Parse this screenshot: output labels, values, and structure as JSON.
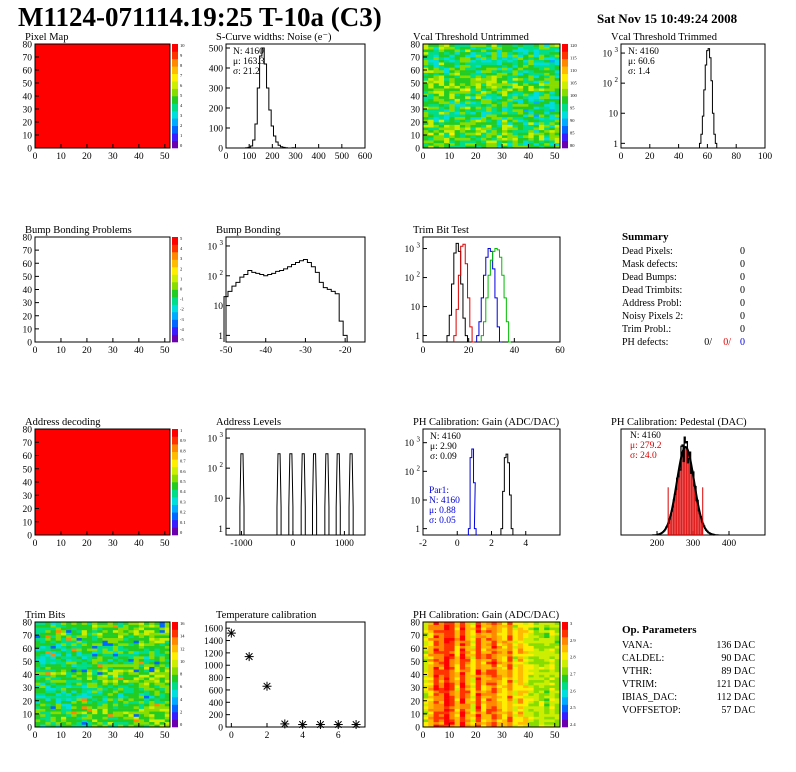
{
  "header": {
    "title": "M1124-071114.19:25 T-10a (C3)",
    "date": "Sat Nov 15 10:49:24 2008"
  },
  "colors": {
    "palette": [
      "#6b00b0",
      "#3a1cff",
      "#0066ff",
      "#00aaff",
      "#00dddd",
      "#00dd88",
      "#22cc22",
      "#88dd00",
      "#ccee00",
      "#ffee00",
      "#ffbb00",
      "#ff8800",
      "#ff3300",
      "#ff0000"
    ],
    "black": "#000000",
    "red": "#dd0000",
    "blue": "#0000dd",
    "green": "#00bb00"
  },
  "summary": {
    "title": "Summary",
    "rows": [
      {
        "label": "Dead Pixels:",
        "value": "0"
      },
      {
        "label": "Mask defects:",
        "value": "0"
      },
      {
        "label": "Dead Bumps:",
        "value": "0"
      },
      {
        "label": "Dead Trimbits:",
        "value": "0"
      },
      {
        "label": "Address Probl:",
        "value": "0"
      },
      {
        "label": "Noisy Pixels 2:",
        "value": "0"
      },
      {
        "label": "Trim Probl.:",
        "value": "0"
      }
    ],
    "ph_label": "PH defects:",
    "ph_values": [
      "0/",
      "0/",
      "0"
    ]
  },
  "parameters": {
    "title": "Op. Parameters",
    "rows": [
      {
        "name": "VANA:",
        "value": "136 DAC"
      },
      {
        "name": "CALDEL:",
        "value": "90 DAC"
      },
      {
        "name": "VTHR:",
        "value": "89 DAC"
      },
      {
        "name": "VTRIM:",
        "value": "121 DAC"
      },
      {
        "name": "IBIAS_DAC:",
        "value": "112 DAC"
      },
      {
        "name": "VOFFSETOP:",
        "value": "57 DAC"
      }
    ]
  },
  "chart_data": [
    {
      "id": "pixel-map",
      "type": "heatmap",
      "title": "Pixel Map",
      "pattern": "uniform-max",
      "xlim": [
        0,
        52
      ],
      "ylim": [
        0,
        80
      ],
      "xticks": [
        0,
        10,
        20,
        30,
        40,
        50
      ],
      "yticks": [
        0,
        10,
        20,
        30,
        40,
        50,
        60,
        70,
        80
      ],
      "zlabels": [
        "10",
        "9",
        "8",
        "7",
        "6",
        "5",
        "4",
        "3",
        "2",
        "1",
        "0"
      ]
    },
    {
      "id": "scurve",
      "type": "histogram",
      "title": "S-Curve widths: Noise (e⁻)",
      "xlim": [
        0,
        600
      ],
      "ylim": [
        0,
        520
      ],
      "xticks": [
        0,
        100,
        200,
        300,
        400,
        500,
        600
      ],
      "yticks": [
        0,
        100,
        200,
        300,
        400,
        500
      ],
      "stats": [
        "N: 4160",
        "μ: 163.3",
        "σ: 21.2"
      ],
      "series": [
        {
          "color": "black",
          "x": [
            80,
            90,
            100,
            110,
            120,
            130,
            140,
            150,
            160,
            170,
            180,
            190,
            200,
            210,
            220,
            230,
            240,
            250,
            260,
            270,
            280,
            290,
            300
          ],
          "y": [
            0,
            1,
            3,
            10,
            40,
            120,
            300,
            460,
            500,
            420,
            300,
            190,
            110,
            60,
            30,
            14,
            6,
            3,
            1,
            0,
            0,
            1,
            0
          ]
        }
      ]
    },
    {
      "id": "vcal-untrimmed",
      "type": "heatmap",
      "title": "Vcal Threshold Untrimmed",
      "pattern": "noise-broad",
      "xlim": [
        0,
        52
      ],
      "ylim": [
        0,
        80
      ],
      "xticks": [
        0,
        10,
        20,
        30,
        40,
        50
      ],
      "yticks": [
        0,
        10,
        20,
        30,
        40,
        50,
        60,
        70,
        80
      ],
      "zlabels": [
        "120",
        "115",
        "110",
        "105",
        "100",
        "95",
        "90",
        "85",
        "80"
      ]
    },
    {
      "id": "vcal-trimmed",
      "type": "histogram",
      "title": "Vcal Threshold Trimmed",
      "log": true,
      "xlim": [
        0,
        100
      ],
      "ylim": [
        0.7,
        2000
      ],
      "xticks": [
        0,
        20,
        40,
        60,
        80,
        100
      ],
      "yticks": [
        1,
        10,
        100,
        1000
      ],
      "stats": [
        "N: 4160",
        "μ: 60.6",
        "σ: 1.4"
      ],
      "series": [
        {
          "color": "black",
          "x": [
            55,
            56,
            57,
            58,
            59,
            60,
            61,
            62,
            63,
            64,
            65,
            66
          ],
          "y": [
            1,
            2,
            8,
            60,
            400,
            1200,
            1400,
            700,
            120,
            10,
            2,
            1
          ]
        }
      ]
    },
    {
      "id": "bump-problems",
      "type": "heatmap",
      "title": "Bump Bonding Problems",
      "pattern": "empty",
      "xlim": [
        0,
        52
      ],
      "ylim": [
        0,
        80
      ],
      "xticks": [
        0,
        10,
        20,
        30,
        40,
        50
      ],
      "yticks": [
        0,
        10,
        20,
        30,
        40,
        50,
        60,
        70,
        80
      ],
      "zlabels": [
        "5",
        "4",
        "3",
        "2",
        "1",
        "0",
        "-1",
        "-2",
        "-3",
        "-4",
        "-5"
      ]
    },
    {
      "id": "bump-bonding",
      "type": "histogram",
      "title": "Bump Bonding",
      "log": true,
      "xlim": [
        -50,
        -15
      ],
      "ylim": [
        0.6,
        2000
      ],
      "xticks": [
        -50,
        -40,
        -30,
        -20
      ],
      "yticks": [
        1,
        10,
        100,
        1000
      ],
      "series": [
        {
          "color": "black",
          "x": [
            -50,
            -49,
            -48,
            -47,
            -46,
            -45,
            -44,
            -43,
            -42,
            -41,
            -40,
            -39,
            -38,
            -37,
            -36,
            -35,
            -34,
            -33,
            -32,
            -31,
            -30,
            -29,
            -28,
            -27,
            -26,
            -25,
            -24,
            -23,
            -22,
            -21,
            -20,
            -19
          ],
          "y": [
            20,
            30,
            45,
            60,
            90,
            110,
            150,
            130,
            120,
            110,
            100,
            110,
            120,
            140,
            150,
            170,
            200,
            240,
            280,
            320,
            350,
            280,
            200,
            130,
            60,
            40,
            35,
            30,
            25,
            3,
            1,
            0
          ]
        }
      ]
    },
    {
      "id": "trim-bit-test",
      "type": "histogram",
      "title": "Trim Bit Test",
      "log": true,
      "xlim": [
        0,
        60
      ],
      "ylim": [
        0.6,
        2500
      ],
      "xticks": [
        0,
        20,
        40,
        60
      ],
      "yticks": [
        1,
        10,
        100,
        1000
      ],
      "series": [
        {
          "color": "black",
          "x": [
            11,
            12,
            13,
            14,
            15,
            16,
            17,
            18,
            19,
            20
          ],
          "y": [
            1,
            5,
            60,
            700,
            1500,
            800,
            60,
            4,
            1,
            0
          ]
        },
        {
          "color": "red",
          "x": [
            14,
            15,
            16,
            17,
            18,
            19,
            20,
            21,
            22
          ],
          "y": [
            1,
            8,
            120,
            1200,
            1400,
            300,
            20,
            2,
            0
          ]
        },
        {
          "color": "blue",
          "x": [
            24,
            25,
            26,
            27,
            28,
            29,
            30,
            31,
            32,
            33,
            34
          ],
          "y": [
            1,
            3,
            20,
            120,
            500,
            1000,
            800,
            200,
            20,
            2,
            0
          ]
        },
        {
          "color": "green",
          "x": [
            26,
            27,
            28,
            29,
            30,
            31,
            32,
            33,
            34,
            35,
            36,
            37,
            38
          ],
          "y": [
            1,
            3,
            20,
            120,
            400,
            800,
            1000,
            900,
            500,
            120,
            20,
            3,
            0
          ]
        }
      ]
    },
    {
      "id": "address-decoding",
      "type": "heatmap",
      "title": "Address decoding",
      "pattern": "uniform-max",
      "xlim": [
        0,
        52
      ],
      "ylim": [
        0,
        80
      ],
      "xticks": [
        0,
        10,
        20,
        30,
        40,
        50
      ],
      "yticks": [
        0,
        10,
        20,
        30,
        40,
        50,
        60,
        70,
        80
      ],
      "zlabels": [
        "1",
        "0.9",
        "0.8",
        "0.7",
        "0.6",
        "0.5",
        "0.4",
        "0.3",
        "0.2",
        "0.1",
        "0"
      ]
    },
    {
      "id": "address-levels",
      "type": "histogram",
      "title": "Address Levels",
      "log": true,
      "xlim": [
        -1300,
        1400
      ],
      "ylim": [
        0.6,
        2000
      ],
      "xticks": [
        -1000,
        0,
        1000
      ],
      "yticks": [
        1,
        10,
        100,
        1000
      ],
      "peaks": [
        -990,
        -270,
        -40,
        200,
        420,
        660,
        880,
        1130
      ],
      "peak_height": 300
    },
    {
      "id": "ph-gain",
      "type": "histogram",
      "title": "PH Calibration: Gain (ADC/DAC)",
      "log": true,
      "xlim": [
        -2,
        6
      ],
      "ylim": [
        0.6,
        3000
      ],
      "xticks": [
        -2,
        0,
        2,
        4
      ],
      "yticks": [
        1,
        10,
        100,
        1000
      ],
      "stats": [
        "N: 4160",
        "μ: 2.90",
        "σ: 0.09"
      ],
      "stats2": [
        "Par1:",
        "N: 4160",
        "μ: 0.88",
        "σ: 0.05"
      ],
      "series": [
        {
          "color": "black",
          "x": [
            2.6,
            2.7,
            2.8,
            2.9,
            3.0,
            3.1,
            3.2
          ],
          "y": [
            1,
            20,
            300,
            400,
            200,
            15,
            1
          ]
        },
        {
          "color": "blue",
          "x": [
            0.7,
            0.8,
            0.9,
            1.0,
            1.05
          ],
          "y": [
            1,
            300,
            600,
            40,
            1
          ]
        }
      ]
    },
    {
      "id": "ph-pedestal",
      "type": "histogram",
      "title": "PH Calibration: Pedestal (DAC)",
      "xlim": [
        100,
        500
      ],
      "ylim": [
        0,
        100
      ],
      "xticks": [
        200,
        300,
        400
      ],
      "stats": [
        "N: 4160",
        "μ: 279.2",
        "σ: 24.0"
      ],
      "mu": 279.2,
      "sigma": 24.0,
      "peak": 83,
      "markers": [
        231,
        327
      ]
    },
    {
      "id": "trim-bits",
      "type": "heatmap",
      "title": "Trim Bits",
      "pattern": "noise-trim",
      "xlim": [
        0,
        52
      ],
      "ylim": [
        0,
        80
      ],
      "xticks": [
        0,
        10,
        20,
        30,
        40,
        50
      ],
      "yticks": [
        0,
        10,
        20,
        30,
        40,
        50,
        60,
        70,
        80
      ],
      "zlabels": [
        "16",
        "14",
        "12",
        "10",
        "8",
        "6",
        "4",
        "2",
        "0"
      ]
    },
    {
      "id": "temperature",
      "type": "scatter",
      "title": "Temperature calibration",
      "xlim": [
        -0.3,
        7.5
      ],
      "ylim": [
        0,
        1700
      ],
      "xticks": [
        0,
        2,
        4,
        6
      ],
      "yticks": [
        0,
        200,
        400,
        600,
        800,
        1000,
        1200,
        1400,
        1600
      ],
      "x": [
        0,
        1,
        2,
        3,
        4,
        5,
        6,
        7
      ],
      "y": [
        1520,
        1140,
        660,
        50,
        40,
        40,
        40,
        40
      ]
    },
    {
      "id": "ph-gain-map",
      "type": "heatmap",
      "title": "PH Calibration: Gain (ADC/DAC)",
      "pattern": "noise-gain",
      "xlim": [
        0,
        52
      ],
      "ylim": [
        0,
        80
      ],
      "xticks": [
        0,
        10,
        20,
        30,
        40,
        50
      ],
      "yticks": [
        0,
        10,
        20,
        30,
        40,
        50,
        60,
        70,
        80
      ],
      "zlabels": [
        "3",
        "2.9",
        "2.8",
        "2.7",
        "2.6",
        "2.5",
        "2.4"
      ]
    }
  ]
}
